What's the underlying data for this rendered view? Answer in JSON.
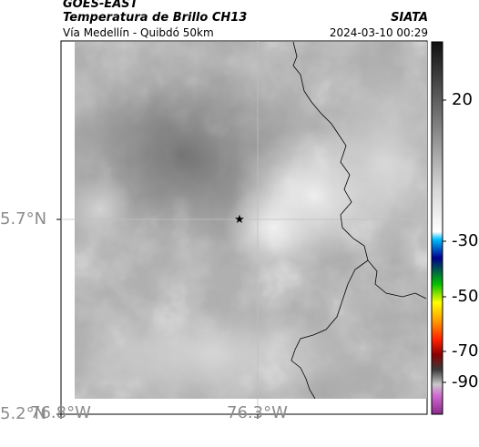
{
  "header": {
    "satellite": "GOES-EAST",
    "product": "Temperatura de Brillo CH13",
    "region": "Vía Medellín - Quibdó 50km",
    "source": "SIATA",
    "datetime": "2024-03-10 00:29"
  },
  "axes": {
    "y_ticks": [
      "5.7°N",
      "5.2°N"
    ],
    "x_ticks": [
      "76.8°W",
      "76.3°W"
    ]
  },
  "colorbar": {
    "ticks": [
      "20",
      "-30",
      "-50",
      "-70",
      "-90"
    ]
  },
  "marker": {
    "symbol": "★",
    "name": "location-star"
  },
  "colors": {
    "background_gray": "#6e6e6e",
    "cloud_light": "#e8e8e8",
    "border_line": "#000000",
    "gridline": "#bfbfbf"
  }
}
